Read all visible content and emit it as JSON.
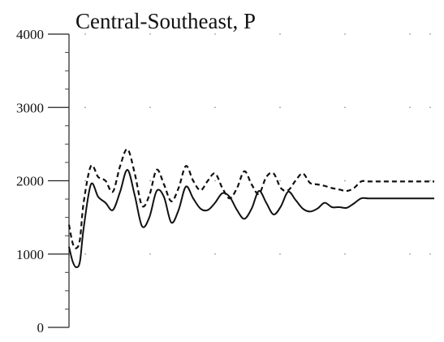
{
  "chart_data": {
    "type": "line",
    "title": "Central-Southeast, P",
    "xlabel": "",
    "ylabel": "",
    "ylim": [
      0,
      4000
    ],
    "xlim": [
      0,
      100
    ],
    "yticks": [
      0,
      1000,
      2000,
      3000,
      4000
    ],
    "y_tick_labels": [
      "0",
      "1000",
      "2000",
      "3000",
      "4000"
    ],
    "x_tick_labels": [],
    "grid": "dotted",
    "legend": "none",
    "colors": {
      "line": "#111111",
      "background": "#ffffff",
      "grid": "#9a9a9a"
    },
    "series": [
      {
        "style": "solid",
        "x": [
          0,
          1,
          2,
          3,
          4,
          6,
          8,
          10,
          12,
          14,
          16,
          18,
          20,
          22,
          24,
          26,
          28,
          30,
          32,
          34,
          36,
          38,
          40,
          42,
          44,
          46,
          48,
          50,
          52,
          54,
          56,
          58,
          60,
          62,
          64,
          66,
          68,
          70,
          72,
          74,
          76,
          78,
          80,
          82,
          84,
          86,
          88,
          90,
          92,
          94,
          96,
          98,
          100
        ],
        "y": [
          1100,
          900,
          820,
          900,
          1350,
          1950,
          1780,
          1700,
          1600,
          1850,
          2150,
          1800,
          1380,
          1500,
          1860,
          1780,
          1430,
          1600,
          1920,
          1760,
          1620,
          1600,
          1700,
          1830,
          1780,
          1600,
          1480,
          1620,
          1860,
          1700,
          1540,
          1650,
          1850,
          1740,
          1620,
          1580,
          1620,
          1700,
          1640,
          1640,
          1630,
          1690,
          1760,
          1760,
          1760,
          1760,
          1760,
          1760,
          1760,
          1760,
          1760,
          1760,
          1760
        ]
      },
      {
        "style": "dashed",
        "x": [
          0,
          1,
          2,
          3,
          4,
          6,
          8,
          10,
          12,
          14,
          16,
          18,
          20,
          22,
          24,
          26,
          28,
          30,
          32,
          34,
          36,
          38,
          40,
          42,
          44,
          46,
          48,
          50,
          52,
          54,
          56,
          58,
          60,
          62,
          64,
          66,
          68,
          70,
          72,
          74,
          76,
          78,
          80,
          82,
          84,
          86,
          88,
          90,
          92,
          94,
          96,
          98,
          100
        ],
        "y": [
          1400,
          1150,
          1080,
          1200,
          1700,
          2200,
          2050,
          2000,
          1850,
          2200,
          2430,
          2100,
          1660,
          1800,
          2150,
          1950,
          1720,
          1900,
          2200,
          2000,
          1870,
          2000,
          2100,
          1900,
          1760,
          1900,
          2130,
          1950,
          1820,
          2050,
          2100,
          1900,
          1870,
          2000,
          2100,
          1970,
          1950,
          1930,
          1900,
          1880,
          1860,
          1900,
          1990,
          1990,
          1990,
          1990,
          1990,
          1990,
          1990,
          1990,
          1990,
          1990,
          1990
        ]
      }
    ]
  }
}
